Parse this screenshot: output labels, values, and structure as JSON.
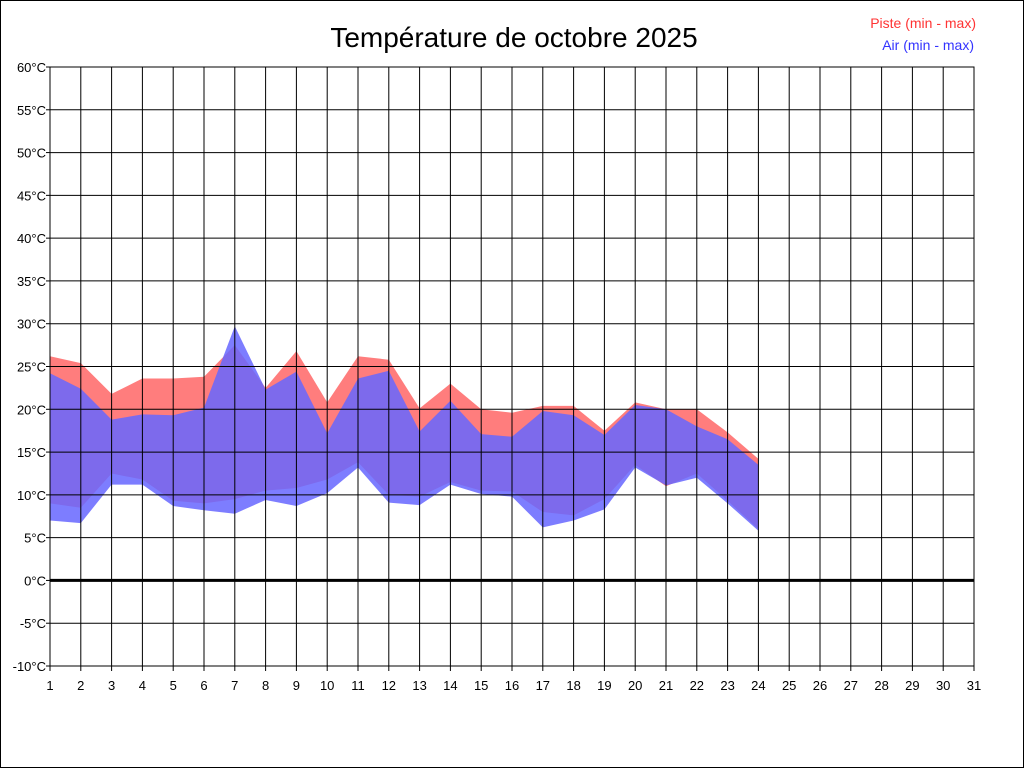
{
  "chart_data": {
    "type": "area",
    "title": "Température de octobre 2025",
    "xlabel": "",
    "ylabel": "",
    "xlim": [
      1,
      31
    ],
    "ylim": [
      -10,
      60
    ],
    "grid": true,
    "legend_position": "top-right",
    "x": [
      1,
      2,
      3,
      4,
      5,
      6,
      7,
      8,
      9,
      10,
      11,
      12,
      13,
      14,
      15,
      16,
      17,
      18,
      19,
      20,
      21,
      22,
      23,
      24
    ],
    "x_tick_labels": [
      "1",
      "2",
      "3",
      "4",
      "5",
      "6",
      "7",
      "8",
      "9",
      "10",
      "11",
      "12",
      "13",
      "14",
      "15",
      "16",
      "17",
      "18",
      "19",
      "20",
      "21",
      "22",
      "23",
      "24",
      "25",
      "26",
      "27",
      "28",
      "29",
      "30",
      "31"
    ],
    "y_tick_labels": [
      "60°C",
      "55°C",
      "50°C",
      "45°C",
      "40°C",
      "35°C",
      "30°C",
      "25°C",
      "20°C",
      "15°C",
      "10°C",
      "5°C",
      "0°C",
      "-5°C",
      "-10°C"
    ],
    "y_tick_values": [
      60,
      55,
      50,
      45,
      40,
      35,
      30,
      25,
      20,
      15,
      10,
      5,
      0,
      -5,
      -10
    ],
    "series": [
      {
        "name": "Piste (min - max)",
        "color": "#ff6666",
        "min": [
          9.0,
          8.5,
          12.5,
          11.8,
          9.3,
          9.0,
          9.5,
          10.5,
          10.8,
          11.8,
          13.8,
          10.0,
          9.8,
          11.5,
          10.5,
          10.4,
          8.0,
          7.6,
          9.5,
          13.5,
          11.0,
          12.5,
          9.3,
          6.0
        ],
        "max": [
          26.2,
          25.4,
          21.8,
          23.6,
          23.6,
          23.8,
          27.5,
          22.5,
          26.8,
          20.8,
          26.2,
          25.8,
          20.1,
          23.0,
          20.0,
          19.6,
          20.4,
          20.4,
          17.5,
          20.8,
          20.0,
          20.0,
          17.3,
          14.2
        ]
      },
      {
        "name": "Air (min - max)",
        "color": "#6666ff",
        "min": [
          7.0,
          6.7,
          11.2,
          11.2,
          8.7,
          8.2,
          7.8,
          9.4,
          8.7,
          10.2,
          13.2,
          9.1,
          8.8,
          11.2,
          10.1,
          9.8,
          6.2,
          7.0,
          8.3,
          13.2,
          11.1,
          12.0,
          9.0,
          5.8
        ],
        "max": [
          24.2,
          22.4,
          18.8,
          19.4,
          19.3,
          20.2,
          29.7,
          22.3,
          24.4,
          17.2,
          23.6,
          24.5,
          17.4,
          21.0,
          17.1,
          16.8,
          19.8,
          19.3,
          17.0,
          20.5,
          20.0,
          18.0,
          16.5,
          13.5
        ]
      }
    ]
  }
}
